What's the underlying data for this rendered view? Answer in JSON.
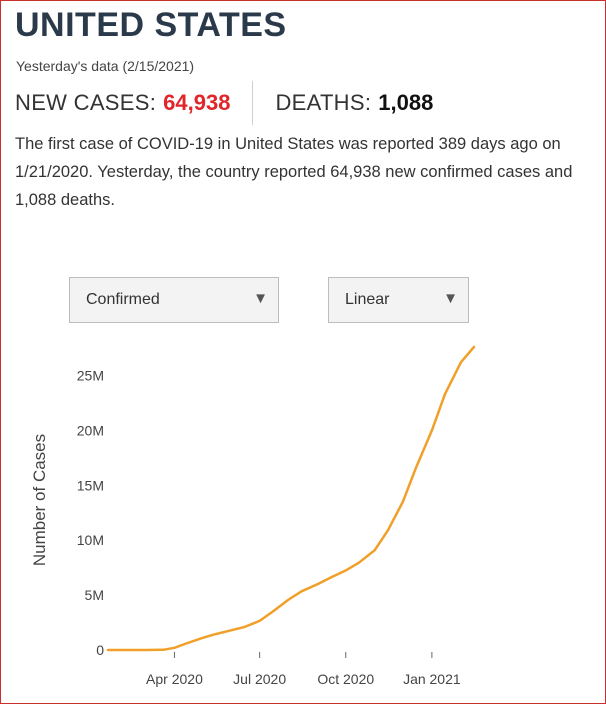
{
  "header": {
    "title": "UNITED STATES",
    "subtitle": "Yesterday's data (2/15/2021)"
  },
  "stats": {
    "new_cases_label": "NEW CASES:",
    "new_cases_value": "64,938",
    "deaths_label": "DEATHS:",
    "deaths_value": "1,088"
  },
  "description": "The first case of COVID-19 in United States was reported 389 days ago on 1/21/2020. Yesterday, the country reported 64,938 new confirmed cases and 1,088 deaths.",
  "controls": {
    "metric_value": "Confirmed",
    "scale_value": "Linear"
  },
  "colors": {
    "accent_red": "#e0262a",
    "line": "#f0a028",
    "title": "#2b3a4a"
  },
  "chart_data": {
    "type": "line",
    "ylabel": "Number of Cases",
    "x_range": [
      "2020-01-21",
      "2021-02-15"
    ],
    "y_range": [
      0,
      27500000
    ],
    "y_ticks": [
      0,
      5000000,
      10000000,
      15000000,
      20000000,
      25000000
    ],
    "y_tick_labels": [
      "0",
      "5M",
      "10M",
      "15M",
      "20M",
      "25M"
    ],
    "x_ticks": [
      "2020-04-01",
      "2020-07-01",
      "2020-10-01",
      "2021-01-01"
    ],
    "x_tick_labels": [
      "Apr 2020",
      "Jul 2020",
      "Oct 2020",
      "Jan 2021"
    ],
    "grid": false,
    "series": [
      {
        "name": "",
        "points": [
          [
            "2020-01-21",
            0
          ],
          [
            "2020-03-01",
            100
          ],
          [
            "2020-03-20",
            20000
          ],
          [
            "2020-04-01",
            200000
          ],
          [
            "2020-04-15",
            640000
          ],
          [
            "2020-05-01",
            1100000
          ],
          [
            "2020-05-15",
            1450000
          ],
          [
            "2020-06-01",
            1800000
          ],
          [
            "2020-06-15",
            2100000
          ],
          [
            "2020-07-01",
            2650000
          ],
          [
            "2020-07-15",
            3500000
          ],
          [
            "2020-08-01",
            4600000
          ],
          [
            "2020-08-15",
            5350000
          ],
          [
            "2020-09-01",
            6000000
          ],
          [
            "2020-09-15",
            6600000
          ],
          [
            "2020-10-01",
            7250000
          ],
          [
            "2020-10-15",
            7950000
          ],
          [
            "2020-11-01",
            9100000
          ],
          [
            "2020-11-15",
            10900000
          ],
          [
            "2020-12-01",
            13500000
          ],
          [
            "2020-12-15",
            16600000
          ],
          [
            "2021-01-01",
            20000000
          ],
          [
            "2021-01-15",
            23300000
          ],
          [
            "2021-02-01",
            26200000
          ],
          [
            "2021-02-15",
            27600000
          ]
        ]
      }
    ]
  }
}
